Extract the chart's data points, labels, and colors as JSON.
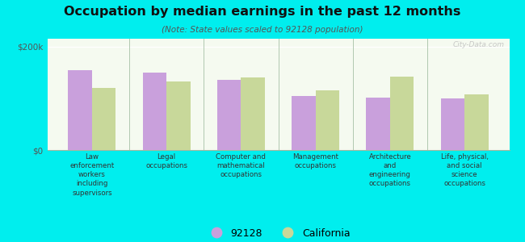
{
  "title": "Occupation by median earnings in the past 12 months",
  "subtitle": "(Note: State values scaled to 92128 population)",
  "categories": [
    "Law\nenforcement\nworkers\nincluding\nsupervisors",
    "Legal\noccupations",
    "Computer and\nmathematical\noccupations",
    "Management\noccupations",
    "Architecture\nand\nengineering\noccupations",
    "Life, physical,\nand social\nscience\noccupations"
  ],
  "values_92128": [
    155000,
    150000,
    135000,
    105000,
    102000,
    100000
  ],
  "values_california": [
    120000,
    132000,
    140000,
    115000,
    142000,
    108000
  ],
  "color_92128": "#c9a0dc",
  "color_california": "#c8d89a",
  "background_color": "#00eeee",
  "plot_bg_top": "#f5faf0",
  "plot_bg_bottom": "#e8f5e0",
  "yticks": [
    0,
    200000
  ],
  "ytick_labels": [
    "$0",
    "$200k"
  ],
  "ylim": [
    0,
    215000
  ],
  "bar_width": 0.32,
  "legend_label_92128": "92128",
  "legend_label_california": "California",
  "watermark": "City-Data.com",
  "divider_color": "#b0c8b0",
  "spine_color": "#a0b8a0"
}
